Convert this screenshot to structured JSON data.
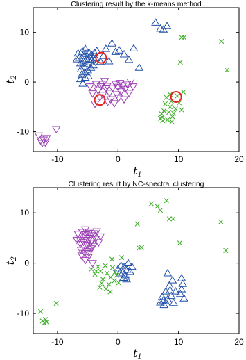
{
  "chart_data": [
    {
      "type": "scatter",
      "title": "Clustering result by the k-means method",
      "xlabel": {
        "main": "t",
        "sub": "1"
      },
      "ylabel": {
        "main": "t",
        "sub": "2"
      },
      "xlim": [
        -14,
        20
      ],
      "ylim": [
        -14,
        15
      ],
      "xticks": [
        -10,
        0,
        10,
        20
      ],
      "yticks": [
        -10,
        0,
        10
      ],
      "grid": false,
      "legend": "none",
      "series": [
        {
          "marker": "triangle-up",
          "color": "#1f4fa8",
          "points": [
            [
              -6.8,
              4.6
            ],
            [
              -6.6,
              5.8
            ],
            [
              -6.4,
              4.9
            ],
            [
              -6.2,
              3.8
            ],
            [
              -6.1,
              2.6
            ],
            [
              -6.0,
              1.5
            ],
            [
              -5.9,
              6.2
            ],
            [
              -5.8,
              5.3
            ],
            [
              -5.7,
              4.2
            ],
            [
              -5.6,
              3.1
            ],
            [
              -5.5,
              2.0
            ],
            [
              -5.4,
              6.7
            ],
            [
              -5.3,
              5.7
            ],
            [
              -5.2,
              4.6
            ],
            [
              -5.1,
              3.6
            ],
            [
              -5.0,
              2.4
            ],
            [
              -4.9,
              1.2
            ],
            [
              -4.8,
              6.0
            ],
            [
              -4.7,
              5.0
            ],
            [
              -4.6,
              4.0
            ],
            [
              -4.5,
              2.9
            ],
            [
              -4.4,
              5.5
            ],
            [
              -4.3,
              4.5
            ],
            [
              -4.1,
              3.4
            ],
            [
              -3.9,
              5.9
            ],
            [
              -3.7,
              4.8
            ],
            [
              -3.5,
              6.3
            ],
            [
              -2.9,
              4.1
            ],
            [
              -2.4,
              5.3
            ],
            [
              -2.0,
              6.7
            ],
            [
              -1.5,
              4.2
            ],
            [
              -1.0,
              7.8
            ],
            [
              -0.4,
              6.1
            ],
            [
              0.2,
              6.4
            ],
            [
              1.0,
              5.6
            ],
            [
              1.8,
              4.5
            ],
            [
              2.6,
              6.8
            ],
            [
              3.5,
              2.9
            ],
            [
              6.2,
              12.0
            ],
            [
              7.0,
              10.8
            ],
            [
              7.5,
              10.6
            ],
            [
              8.1,
              11.3
            ],
            [
              -6.2,
              0.6
            ],
            [
              -5.8,
              -0.3
            ],
            [
              -5.4,
              0.9
            ]
          ]
        },
        {
          "marker": "triangle-down",
          "color": "#9b3fb4",
          "points": [
            [
              -13.1,
              -10.8
            ],
            [
              -12.8,
              -11.8
            ],
            [
              -12.5,
              -12.3
            ],
            [
              -12.3,
              -11.6
            ],
            [
              -12.0,
              -12.2
            ],
            [
              -11.8,
              -11.3
            ],
            [
              -10.2,
              -9.5
            ],
            [
              -4.6,
              -0.9
            ],
            [
              -4.2,
              -2.3
            ],
            [
              -3.8,
              -4.4
            ],
            [
              -3.6,
              -0.4
            ],
            [
              -3.3,
              -1.7
            ],
            [
              -3.0,
              -3.1
            ],
            [
              -2.8,
              -0.9
            ],
            [
              -2.5,
              -2.6
            ],
            [
              -2.2,
              0.2
            ],
            [
              -2.0,
              -1.3
            ],
            [
              -1.7,
              -4.0
            ],
            [
              -1.4,
              -2.2
            ],
            [
              -1.2,
              -3.5
            ],
            [
              -0.9,
              -1.2
            ],
            [
              -0.6,
              -4.3
            ],
            [
              -0.4,
              -0.4
            ],
            [
              -0.2,
              -2.5
            ],
            [
              0.0,
              -1.0
            ],
            [
              0.1,
              -3.2
            ],
            [
              0.3,
              -0.2
            ],
            [
              0.5,
              -1.9
            ],
            [
              0.8,
              -0.7
            ],
            [
              1.0,
              -3.5
            ],
            [
              1.2,
              -1.4
            ],
            [
              1.5,
              -0.4
            ],
            [
              1.8,
              -2.2
            ],
            [
              2.1,
              0.1
            ],
            [
              2.5,
              -0.9
            ],
            [
              -2.7,
              -0.4
            ],
            [
              -1.8,
              -0.8
            ]
          ]
        },
        {
          "marker": "x",
          "color": "#3faf2a",
          "points": [
            [
              7.0,
              -7.3
            ],
            [
              7.2,
              -6.4
            ],
            [
              7.4,
              -7.8
            ],
            [
              7.6,
              -5.8
            ],
            [
              7.8,
              -4.4
            ],
            [
              8.0,
              -3.1
            ],
            [
              8.2,
              -7.6
            ],
            [
              8.4,
              -6.1
            ],
            [
              8.6,
              -5.0
            ],
            [
              8.8,
              -3.9
            ],
            [
              9.0,
              -7.0
            ],
            [
              9.2,
              -6.3
            ],
            [
              9.5,
              -5.4
            ],
            [
              9.8,
              -2.8
            ],
            [
              10.1,
              -4.2
            ],
            [
              10.5,
              -5.6
            ],
            [
              10.8,
              -2.0
            ],
            [
              8.6,
              -2.5
            ],
            [
              10.3,
              4.0
            ],
            [
              10.5,
              9.0
            ],
            [
              10.9,
              9.0
            ],
            [
              17.1,
              8.2
            ],
            [
              18.0,
              2.4
            ],
            [
              7.3,
              -7.1
            ],
            [
              8.9,
              -8.0
            ]
          ]
        },
        {
          "marker": "circle",
          "color": "#e52420",
          "points": [
            [
              -2.8,
              4.9
            ],
            [
              -3.0,
              -3.6
            ],
            [
              9.6,
              -3.0
            ]
          ]
        }
      ]
    },
    {
      "type": "scatter",
      "title": "Clustering result by NC-spectral clustering",
      "xlabel": {
        "main": "t",
        "sub": "1"
      },
      "ylabel": {
        "main": "t",
        "sub": "2"
      },
      "xlim": [
        -14,
        20
      ],
      "ylim": [
        -14,
        15
      ],
      "xticks": [
        -10,
        0,
        10,
        20
      ],
      "yticks": [
        -10,
        0,
        10
      ],
      "grid": false,
      "legend": "none",
      "series": [
        {
          "marker": "triangle-down",
          "color": "#9b3fb4",
          "points": [
            [
              -6.8,
              4.6
            ],
            [
              -6.6,
              5.8
            ],
            [
              -6.4,
              4.9
            ],
            [
              -6.2,
              3.8
            ],
            [
              -6.1,
              2.6
            ],
            [
              -6.0,
              1.5
            ],
            [
              -5.9,
              6.2
            ],
            [
              -5.8,
              5.3
            ],
            [
              -5.7,
              4.2
            ],
            [
              -5.6,
              3.1
            ],
            [
              -5.5,
              2.0
            ],
            [
              -5.4,
              6.7
            ],
            [
              -5.3,
              5.7
            ],
            [
              -5.2,
              4.6
            ],
            [
              -5.1,
              3.6
            ],
            [
              -5.0,
              2.4
            ],
            [
              -4.9,
              1.2
            ],
            [
              -4.8,
              6.0
            ],
            [
              -4.7,
              5.0
            ],
            [
              -4.6,
              4.0
            ],
            [
              -4.5,
              2.9
            ],
            [
              -4.4,
              5.5
            ],
            [
              -4.3,
              4.5
            ],
            [
              -4.1,
              3.4
            ],
            [
              -3.9,
              5.9
            ],
            [
              -3.7,
              4.8
            ],
            [
              -3.5,
              6.3
            ],
            [
              -3.2,
              4.1
            ],
            [
              -2.9,
              5.3
            ],
            [
              -4.2,
              0.0
            ],
            [
              -4.8,
              2.0
            ],
            [
              -5.4,
              0.6
            ]
          ]
        },
        {
          "marker": "triangle-up",
          "color": "#1f4fa8",
          "points": [
            [
              0.0,
              -1.2
            ],
            [
              0.3,
              -2.0
            ],
            [
              0.5,
              -0.5
            ],
            [
              0.8,
              -1.8
            ],
            [
              1.0,
              -0.8
            ],
            [
              1.2,
              -2.4
            ],
            [
              1.5,
              -1.3
            ],
            [
              1.7,
              0.0
            ],
            [
              2.0,
              -1.7
            ],
            [
              2.3,
              -0.7
            ],
            [
              0.9,
              -2.9
            ],
            [
              1.4,
              -3.2
            ],
            [
              7.0,
              -7.8
            ],
            [
              7.3,
              -6.7
            ],
            [
              7.6,
              -8.3
            ],
            [
              7.9,
              -5.6
            ],
            [
              8.2,
              -7.2
            ],
            [
              8.5,
              -4.4
            ],
            [
              8.8,
              -6.5
            ],
            [
              9.0,
              -3.4
            ],
            [
              9.2,
              -7.9
            ],
            [
              8.2,
              -2.0
            ],
            [
              8.6,
              -5.4
            ],
            [
              10.3,
              -6.1
            ],
            [
              10.5,
              -5.2
            ],
            [
              10.7,
              -4.1
            ],
            [
              10.9,
              -7.0
            ],
            [
              10.5,
              -3.0
            ],
            [
              8.0,
              -8.0
            ],
            [
              7.5,
              -7.4
            ],
            [
              9.5,
              -5.6
            ]
          ]
        },
        {
          "marker": "x",
          "color": "#3faf2a",
          "points": [
            [
              -12.8,
              -9.6
            ],
            [
              -12.5,
              -11.5
            ],
            [
              -12.2,
              -11.9
            ],
            [
              -12.0,
              -11.2
            ],
            [
              -11.8,
              -11.7
            ],
            [
              -10.2,
              -8.0
            ],
            [
              -4.4,
              -1.2
            ],
            [
              -3.8,
              -2.2
            ],
            [
              -3.3,
              -0.7
            ],
            [
              -2.9,
              -1.6
            ],
            [
              -2.5,
              -3.2
            ],
            [
              -2.1,
              -0.5
            ],
            [
              -1.8,
              -2.0
            ],
            [
              -1.5,
              -4.2
            ],
            [
              -1.2,
              -2.8
            ],
            [
              -0.9,
              -0.9
            ],
            [
              -0.6,
              -3.5
            ],
            [
              -0.2,
              -2.4
            ],
            [
              0.1,
              -3.9
            ],
            [
              -2.0,
              -5.1
            ],
            [
              -1.3,
              -5.7
            ],
            [
              -2.7,
              -4.0
            ],
            [
              -3.6,
              -1.6
            ],
            [
              -1.0,
              0.8
            ],
            [
              0.6,
              1.1
            ],
            [
              3.2,
              7.8
            ],
            [
              3.5,
              3.0
            ],
            [
              3.9,
              3.1
            ],
            [
              5.5,
              11.8
            ],
            [
              6.5,
              11.3
            ],
            [
              7.0,
              10.5
            ],
            [
              8.0,
              12.4
            ],
            [
              8.5,
              8.8
            ],
            [
              9.1,
              8.8
            ],
            [
              10.2,
              4.0
            ],
            [
              17.0,
              8.2
            ],
            [
              17.8,
              2.5
            ],
            [
              -0.5,
              -1.8
            ],
            [
              -3.0,
              -4.8
            ]
          ]
        }
      ]
    }
  ]
}
